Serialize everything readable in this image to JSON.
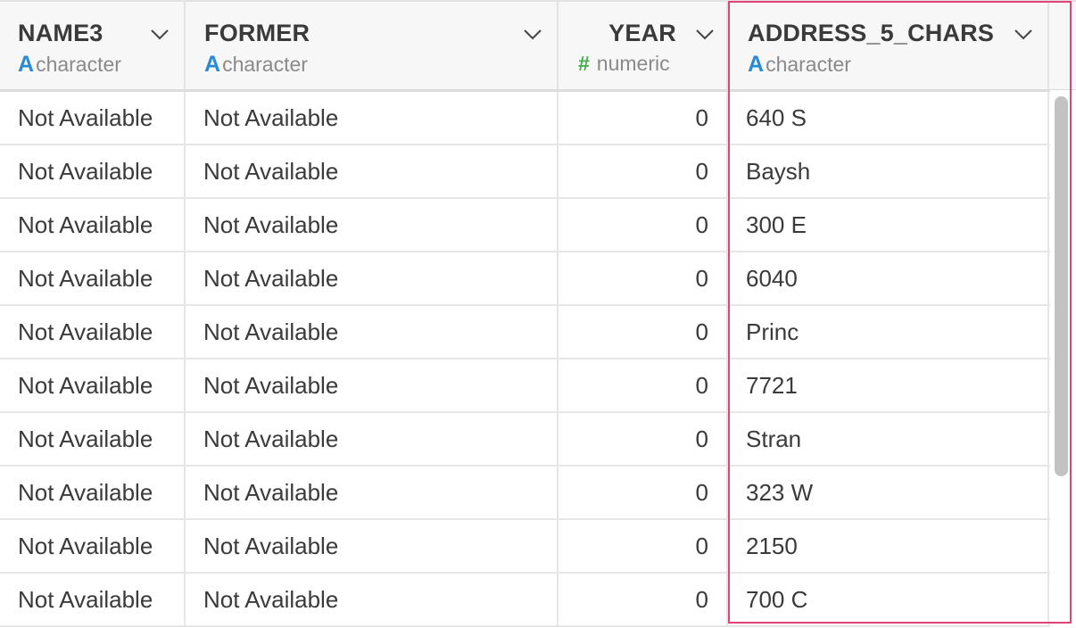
{
  "columns": [
    {
      "name": "NAME3",
      "type": "character",
      "type_icon": "A"
    },
    {
      "name": "FORMER",
      "type": "character",
      "type_icon": "A"
    },
    {
      "name": "YEAR",
      "type": "numeric",
      "type_icon": "#"
    },
    {
      "name": "ADDRESS_5_CHARS",
      "type": "character",
      "type_icon": "A"
    }
  ],
  "rows": [
    {
      "name3": "Not Available",
      "former": "Not Available",
      "year": "0",
      "address": "640 S"
    },
    {
      "name3": "Not Available",
      "former": "Not Available",
      "year": "0",
      "address": "Baysh"
    },
    {
      "name3": "Not Available",
      "former": "Not Available",
      "year": "0",
      "address": "300 E"
    },
    {
      "name3": "Not Available",
      "former": "Not Available",
      "year": "0",
      "address": "6040"
    },
    {
      "name3": "Not Available",
      "former": "Not Available",
      "year": "0",
      "address": "Princ"
    },
    {
      "name3": "Not Available",
      "former": "Not Available",
      "year": "0",
      "address": "7721"
    },
    {
      "name3": "Not Available",
      "former": "Not Available",
      "year": "0",
      "address": "Stran"
    },
    {
      "name3": "Not Available",
      "former": "Not Available",
      "year": "0",
      "address": "323 W"
    },
    {
      "name3": "Not Available",
      "former": "Not Available",
      "year": "0",
      "address": "2150"
    },
    {
      "name3": "Not Available",
      "former": "Not Available",
      "year": "0",
      "address": "700 C"
    }
  ],
  "colors": {
    "selected_column_border": "#e0427a",
    "character_type_icon": "#2a8ad4",
    "numeric_type_icon": "#3fae49"
  }
}
